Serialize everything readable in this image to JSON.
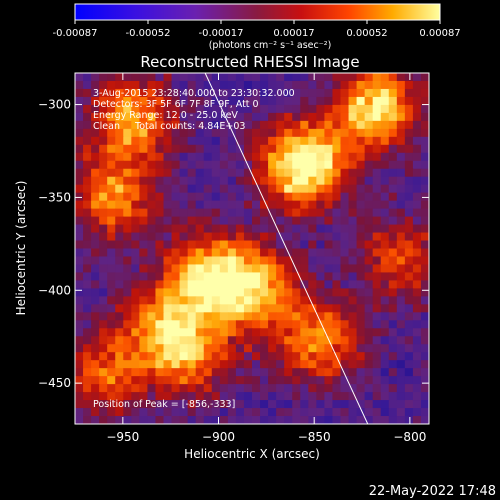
{
  "colorbar": {
    "ticks": [
      "-0.00087",
      "-0.00052",
      "-0.00017",
      "0.00017",
      "0.00052",
      "0.00087"
    ],
    "units": "(photons cm⁻² s⁻¹ asec⁻²)"
  },
  "plot": {
    "title": "Reconstructed RHESSI Image",
    "xlabel": "Heliocentric X (arcsec)",
    "ylabel": "Heliocentric Y (arcsec)",
    "x_ticks": [
      "-950",
      "-900",
      "-850",
      "-800"
    ],
    "y_ticks": [
      "-300",
      "-350",
      "-400",
      "-450"
    ],
    "xlim": [
      -975,
      -790
    ],
    "ylim": [
      -472,
      -283
    ],
    "limb_line": {
      "x_top": -907,
      "x_bottom": -822
    }
  },
  "annotations": {
    "time_range": "3-Aug-2015 23:28:40.000 to 23:30:32.000",
    "detectors": "Detectors: 3F 5F 6F 7F 8F 9F, Att 0",
    "energy_range": "Energy Range: 12.0 - 25.0 keV",
    "clean": "Clean     Total counts: 4.84E+03",
    "peak_position": "Position of Peak = [-856,-333]"
  },
  "footer": {
    "timestamp": "22-May-2022 17:48"
  },
  "chart_data": {
    "type": "heatmap",
    "title": "Reconstructed RHESSI Image",
    "xlabel": "Heliocentric X (arcsec)",
    "ylabel": "Heliocentric Y (arcsec)",
    "xlim": [
      -975,
      -790
    ],
    "ylim": [
      -472,
      -283
    ],
    "color_range": [
      -0.00087,
      0.00087
    ],
    "units": "photons cm-2 s-1 asec-2",
    "bright_regions": [
      {
        "x": -856,
        "y": -333,
        "level": 1.0
      },
      {
        "x": -945,
        "y": -308,
        "level": 0.7
      },
      {
        "x": -818,
        "y": -302,
        "level": 0.8
      },
      {
        "x": -955,
        "y": -350,
        "level": 0.6
      },
      {
        "x": -905,
        "y": -392,
        "level": 0.75
      },
      {
        "x": -880,
        "y": -400,
        "level": 0.65
      },
      {
        "x": -848,
        "y": -428,
        "level": 0.6
      },
      {
        "x": -915,
        "y": -435,
        "level": 0.55
      },
      {
        "x": -960,
        "y": -445,
        "level": 0.5
      },
      {
        "x": -805,
        "y": -382,
        "level": 0.45
      },
      {
        "x": -930,
        "y": -418,
        "level": 0.5
      }
    ],
    "grid": false
  }
}
